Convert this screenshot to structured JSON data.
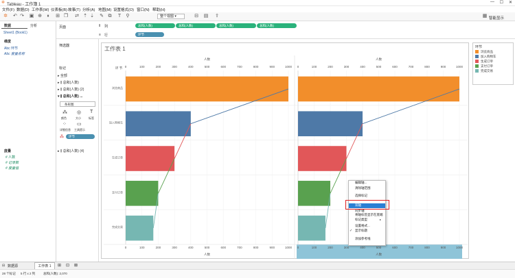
{
  "window": {
    "title": "Tableau - 工作簿 1"
  },
  "menu": [
    "文件(F)",
    "数据(D)",
    "工作表(W)",
    "仪表板(B)",
    "故事(T)",
    "分析(A)",
    "地图(M)",
    "设置格式(O)",
    "窗口(N)",
    "帮助(H)"
  ],
  "toolbar": {
    "view_label": "整个视图",
    "smart_show": "智能显示"
  },
  "left_panel": {
    "tab_data": "数据",
    "tab_analysis": "分析",
    "source": "Sheet1 (Book1)",
    "dimensions_header": "维度",
    "dimensions": [
      "环节",
      "度量名称"
    ],
    "measures_header": "度量",
    "measures": [
      "人数",
      "记录数",
      "度量值"
    ]
  },
  "shelves": {
    "columns_label": "列",
    "rows_label": "行",
    "column_pills": [
      "总和(人数)",
      "总和(人数)",
      "总和(人数)",
      "总和(人数)"
    ],
    "row_pill": "环节"
  },
  "cards": {
    "pages": "页面",
    "filters": "筛选器",
    "marks": "标记",
    "all": "全部",
    "m1": "总和(人数)",
    "m2": "总和(人数) (2)",
    "m3": "总和(人数) ...",
    "mark_type": "条形图",
    "btn_color": "颜色",
    "btn_size": "大小",
    "btn_label": "标签",
    "btn_detail": "详细信息",
    "btn_tooltip": "工具提示",
    "mark_pill": "环节",
    "m4": "总和(人数) (4)"
  },
  "sheet": {
    "title": "工作表 1",
    "row_header": "环 节",
    "axis_title": "人数"
  },
  "legend": {
    "title": "环节",
    "colors": {
      "浏览商品": "#f28e2b",
      "加入购物车": "#4e79a7",
      "生成订单": "#e15759",
      "支付订单": "#59a14f",
      "完成交易": "#76b7b2"
    }
  },
  "context_menu": {
    "items": [
      "编辑轴...",
      "清除轴范围",
      "选择标记",
      "双轴",
      "同步轴",
      "将轴标签显示在底端",
      "标记类型",
      "设置格式...",
      "显示标题",
      "添加参考线"
    ],
    "checked_item": "显示标题"
  },
  "tabs": {
    "data_source": "数据源",
    "sheet": "工作表 1"
  },
  "status": {
    "marks": "28 个标记",
    "rows": "5 行 x 2 列",
    "sum": "总和(人数): 2,070"
  },
  "chart_data": {
    "type": "bar",
    "categories": [
      "浏览商品",
      "加入购物车",
      "生成订单",
      "支付订单",
      "完成交易"
    ],
    "values": [
      1000,
      400,
      300,
      200,
      170
    ],
    "xlim": [
      0,
      1000
    ],
    "x_ticks": [
      0,
      100,
      200,
      300,
      400,
      500,
      600,
      700,
      800,
      900,
      1000
    ],
    "series": [
      {
        "values": [
          1000,
          400,
          300,
          200,
          170
        ]
      },
      {
        "values": [
          1000,
          400,
          300,
          200,
          170
        ]
      }
    ]
  }
}
